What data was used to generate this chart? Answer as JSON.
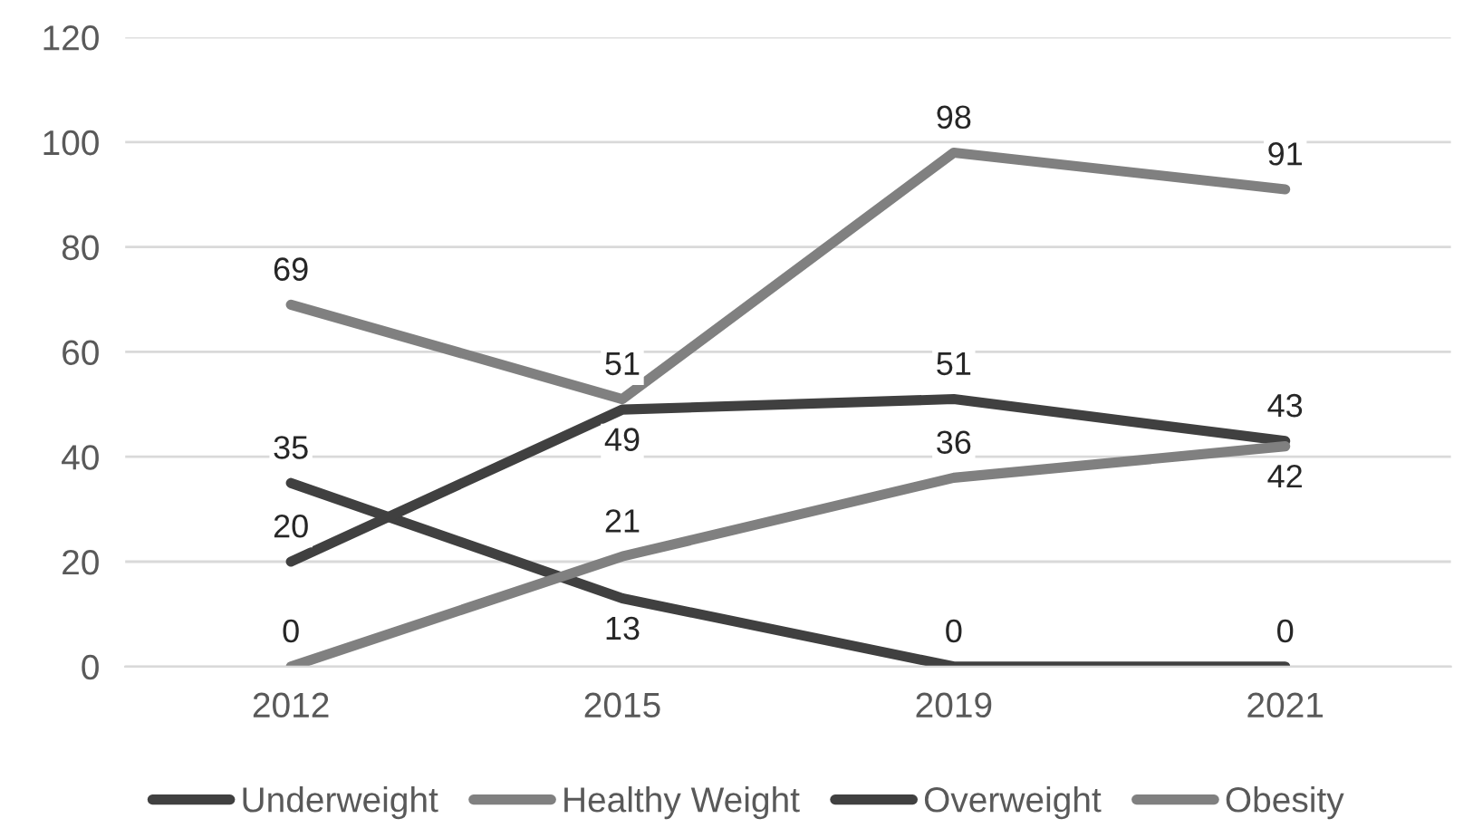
{
  "chart_data": {
    "type": "line",
    "categories": [
      "2012",
      "2015",
      "2019",
      "2021"
    ],
    "series": [
      {
        "name": "Underweight",
        "color": "#404040",
        "values": [
          35,
          13,
          0,
          0
        ]
      },
      {
        "name": "Healthy Weight",
        "color": "#808080",
        "values": [
          69,
          51,
          98,
          91
        ]
      },
      {
        "name": "Overweight",
        "color": "#404040",
        "values": [
          20,
          49,
          51,
          43
        ]
      },
      {
        "name": "Obesity",
        "color": "#808080",
        "values": [
          0,
          21,
          36,
          42
        ]
      }
    ],
    "ylim": [
      0,
      120
    ],
    "yticks": [
      0,
      20,
      40,
      60,
      80,
      100,
      120
    ],
    "grid": "y",
    "legend": "bottom",
    "data_labels": true,
    "marker": "none",
    "line_style": "solid"
  }
}
